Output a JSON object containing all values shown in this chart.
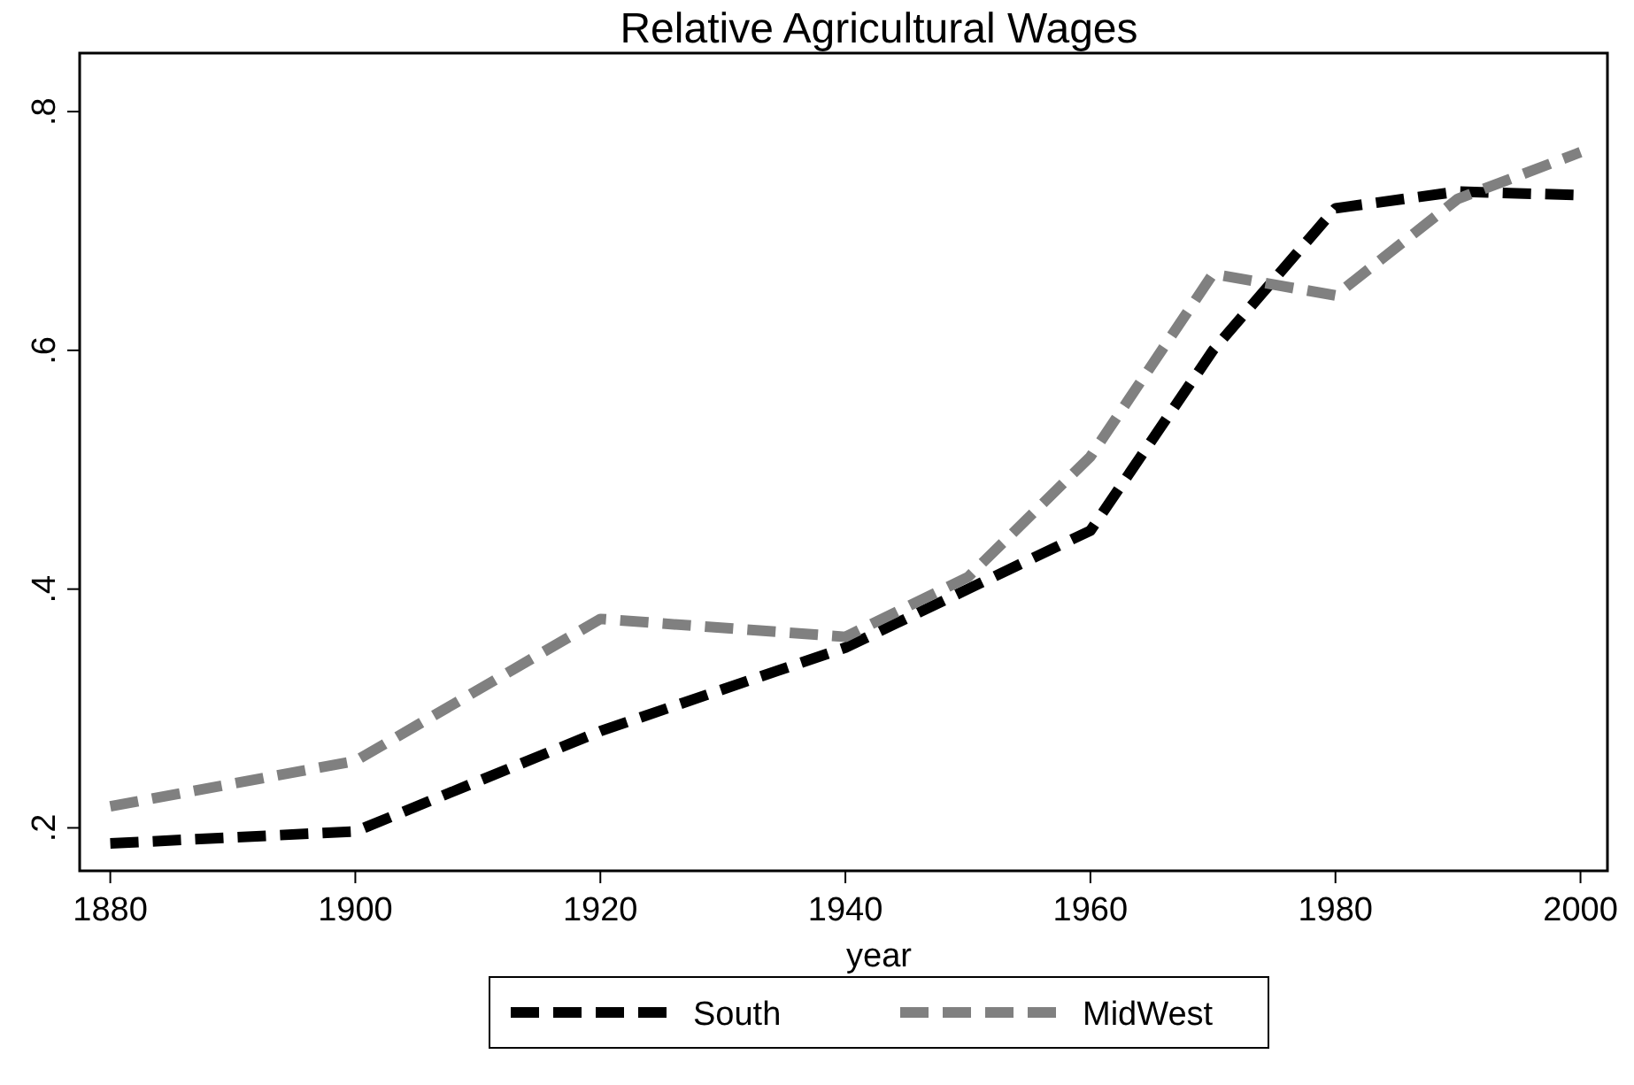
{
  "chart_data": {
    "type": "line",
    "title": "Relative Agricultural Wages",
    "xlabel": "year",
    "x": [
      1880,
      1900,
      1920,
      1940,
      1950,
      1960,
      1970,
      1980,
      1990,
      2000
    ],
    "series": [
      {
        "name": "South",
        "color": "#000000",
        "values": [
          0.187,
          0.197,
          0.281,
          0.351,
          0.4,
          0.449,
          0.6,
          0.719,
          0.733,
          0.73
        ]
      },
      {
        "name": "MidWest",
        "color": "#808080",
        "values": [
          0.218,
          0.256,
          0.375,
          0.36,
          0.41,
          0.511,
          0.664,
          0.646,
          0.727,
          0.766
        ]
      }
    ],
    "xlim": [
      1877.5,
      2002.2
    ],
    "xticks": [
      1880,
      1900,
      1920,
      1940,
      1960,
      1980,
      2000
    ],
    "ylim": [
      0.164,
      0.849
    ],
    "yticks": [
      {
        "value": 0.2,
        "label": ".2"
      },
      {
        "value": 0.4,
        "label": ".4"
      },
      {
        "value": 0.6,
        "label": ".6"
      },
      {
        "value": 0.8,
        "label": ".8"
      }
    ],
    "grid": false,
    "legend": "bottom",
    "line_style": "dashed",
    "marker": "none"
  }
}
